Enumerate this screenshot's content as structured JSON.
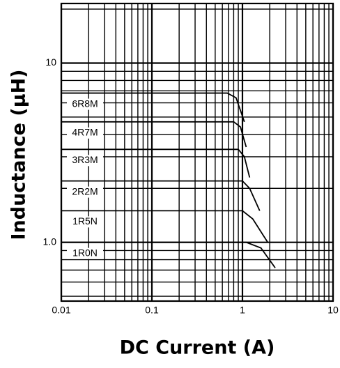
{
  "chart_data": {
    "type": "line",
    "xlabel": "DC Current (A)",
    "ylabel": "Inductance (µH)",
    "xscale": "log",
    "yscale": "log",
    "grid": true,
    "color": "#000000",
    "xlim": [
      0.01,
      10
    ],
    "xticks": [
      0.01,
      0.1,
      1,
      10
    ],
    "ylim": [
      0.47,
      21.5
    ],
    "yticks": [
      {
        "value": 1,
        "label": "1.0"
      },
      10
    ],
    "series": [
      {
        "name": "6R8M",
        "color": "#000000",
        "x": [
          0.01,
          0.68,
          0.85,
          1.05
        ],
        "values": [
          6.8,
          6.8,
          6.4,
          4.7
        ]
      },
      {
        "name": "4R7M",
        "color": "#000000",
        "x": [
          0.01,
          0.8,
          0.95,
          1.1
        ],
        "values": [
          4.7,
          4.7,
          4.4,
          3.4
        ]
      },
      {
        "name": "3R3M",
        "color": "#000000",
        "x": [
          0.01,
          0.9,
          1.05,
          1.2
        ],
        "values": [
          3.3,
          3.3,
          3.0,
          2.3
        ]
      },
      {
        "name": "2R2M",
        "color": "#000000",
        "x": [
          0.01,
          1.0,
          1.2,
          1.55
        ],
        "values": [
          2.2,
          2.2,
          2.0,
          1.5
        ]
      },
      {
        "name": "1R5N",
        "color": "#000000",
        "x": [
          0.01,
          1.0,
          1.3,
          1.9
        ],
        "values": [
          1.5,
          1.5,
          1.35,
          1.0
        ]
      },
      {
        "name": "1R0N",
        "color": "#000000",
        "x": [
          0.01,
          1.1,
          1.6,
          2.3
        ],
        "values": [
          1.0,
          1.0,
          0.93,
          0.72
        ]
      }
    ]
  }
}
